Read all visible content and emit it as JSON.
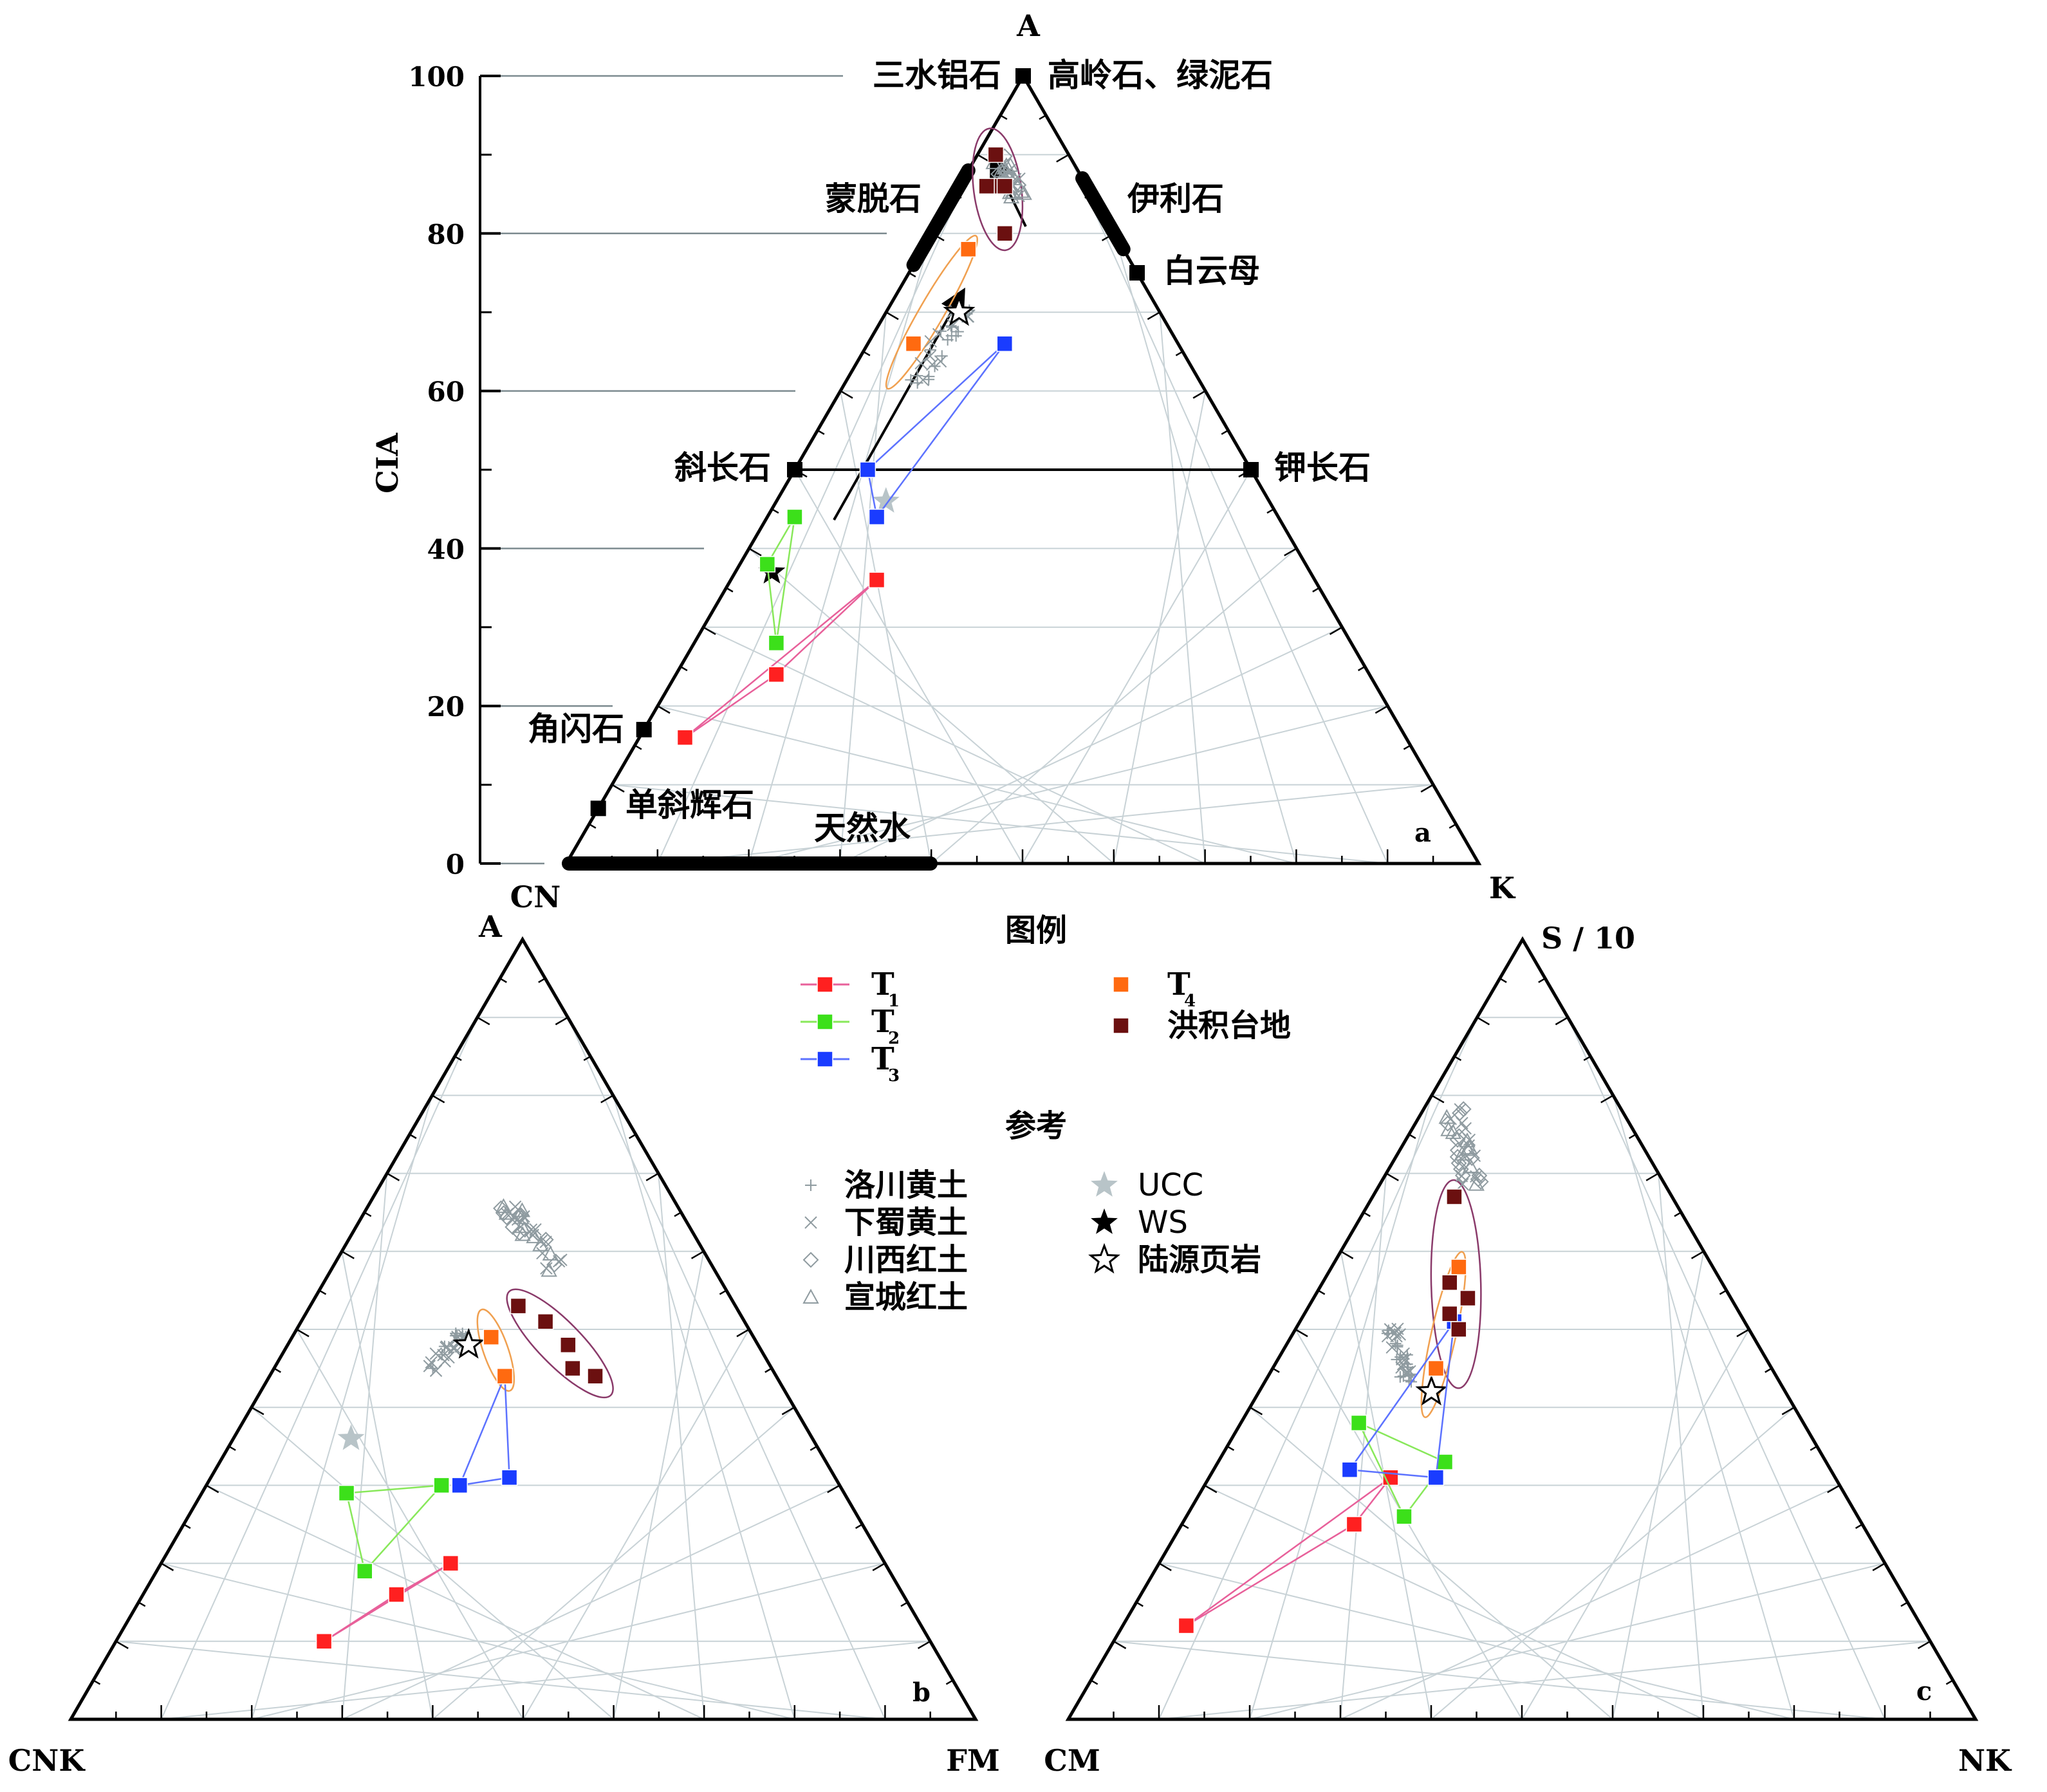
{
  "colors": {
    "T1": "#ff2020",
    "T2": "#3ce01a",
    "T3": "#1a3cff",
    "T4": "#ff6a10",
    "flood": "#6b1010",
    "ref": "#8f9ba0",
    "ellipse_flood": "#8a3a6a",
    "ellipse_t4": "#f0a050",
    "t1_line": "#e8609a",
    "t2_line": "#88e85a",
    "t3_line": "#5c72ff",
    "grid": "#c8d2d6",
    "guide": "#7d8b90"
  },
  "legend": {
    "title": "图例",
    "ref_title": "参考",
    "items": [
      {
        "key": "T1",
        "label": "T",
        "sub": "1",
        "marker": "square-line",
        "color": "#ff2020"
      },
      {
        "key": "T2",
        "label": "T",
        "sub": "2",
        "marker": "square-line",
        "color": "#3ce01a"
      },
      {
        "key": "T3",
        "label": "T",
        "sub": "3",
        "marker": "square-line",
        "color": "#1a3cff"
      },
      {
        "key": "T4",
        "label": "T",
        "sub": "4",
        "marker": "square",
        "color": "#ff6a10"
      },
      {
        "key": "flood",
        "label": "洪积台地",
        "sub": "",
        "marker": "square",
        "color": "#6b1010"
      }
    ],
    "ref_items": [
      {
        "label": "洛川黄土",
        "marker": "plus-icon"
      },
      {
        "label": "下蜀黄土",
        "marker": "cross-icon"
      },
      {
        "label": "川西红土",
        "marker": "diamond-icon"
      },
      {
        "label": "宣城红土",
        "marker": "triangle-icon"
      },
      {
        "label": "UCC",
        "marker": "grey-star-icon"
      },
      {
        "label": "WS",
        "marker": "black-star-icon"
      },
      {
        "label": "陆源页岩",
        "marker": "open-star-icon"
      }
    ]
  },
  "chart_data": [
    {
      "id": "a",
      "type": "scatter",
      "diagram": "ternary A-CN-K",
      "panel_label": "a",
      "vertices": {
        "top": "A",
        "left": "CN",
        "right": "K"
      },
      "ylabel": "CIA",
      "yticks": [
        0,
        20,
        40,
        60,
        80,
        100
      ],
      "minerals": [
        {
          "name": "三水铝石",
          "cia": 100
        },
        {
          "name": "高岭石、绿泥石",
          "cia": 100
        },
        {
          "name": "蒙脱石",
          "cia": 80
        },
        {
          "name": "伊利石",
          "cia": 85
        },
        {
          "name": "白云母",
          "cia": 75
        },
        {
          "name": "斜长石",
          "cia": 50
        },
        {
          "name": "钾长石",
          "cia": 50
        },
        {
          "name": "角闪石",
          "cia": 17
        },
        {
          "name": "单斜辉石",
          "cia": 7
        },
        {
          "name": "天然水",
          "cia": 0
        }
      ],
      "series": [
        {
          "key": "T1",
          "points": [
            [
              16,
              79,
              5
            ],
            [
              24,
              65,
              11
            ],
            [
              36,
              48,
              16
            ]
          ]
        },
        {
          "key": "T2",
          "points": [
            [
              28,
              63,
              9
            ],
            [
              38,
              59,
              3
            ],
            [
              44,
              53,
              3
            ]
          ]
        },
        {
          "key": "T3",
          "points": [
            [
              50,
              42,
              8
            ],
            [
              44,
              44,
              12
            ],
            [
              66,
              19,
              15
            ]
          ]
        },
        {
          "key": "T4",
          "points": [
            [
              66,
              29,
              5
            ],
            [
              78,
              17,
              5
            ]
          ]
        },
        {
          "key": "flood",
          "points": [
            [
              90,
              8,
              2
            ],
            [
              86,
              10,
              4
            ],
            [
              86,
              11,
              3
            ],
            [
              86,
              9,
              5
            ],
            [
              80,
              12,
              8
            ]
          ]
        }
      ],
      "reference": {
        "UCC": [
          46,
          42,
          12
        ],
        "WS": [
          37,
          59,
          4
        ],
        "shale": [
          70,
          22,
          8
        ]
      }
    },
    {
      "id": "b",
      "type": "scatter",
      "diagram": "ternary A-CNK-FM",
      "panel_label": "b",
      "vertices": {
        "top": "A",
        "left": "CNK",
        "right": "FM"
      },
      "series": [
        {
          "key": "T1",
          "points": [
            [
              10,
              67,
              23
            ],
            [
              16,
              56,
              28
            ],
            [
              20,
              48,
              32
            ]
          ]
        },
        {
          "key": "T2",
          "points": [
            [
              19,
              58,
              23
            ],
            [
              29,
              55,
              16
            ],
            [
              30,
              44,
              26
            ]
          ]
        },
        {
          "key": "T3",
          "points": [
            [
              30,
              42,
              28
            ],
            [
              31,
              36,
              33
            ],
            [
              44,
              30,
              26
            ]
          ]
        },
        {
          "key": "T4",
          "points": [
            [
              49,
              29,
              22
            ],
            [
              44,
              30,
              26
            ]
          ]
        },
        {
          "key": "flood",
          "points": [
            [
              53,
              24,
              23
            ],
            [
              51,
              22,
              27
            ],
            [
              48,
              21,
              31
            ],
            [
              45,
              22,
              33
            ],
            [
              44,
              20,
              36
            ]
          ]
        }
      ],
      "reference": {
        "UCC": [
          36,
          51,
          13
        ],
        "shale": [
          48,
          32,
          20
        ]
      }
    },
    {
      "id": "c",
      "type": "scatter",
      "diagram": "ternary S/10-CM-NK",
      "panel_label": "c",
      "vertices": {
        "top": "S / 10",
        "left": "CM",
        "right": "NK"
      },
      "series": [
        {
          "key": "T1",
          "points": [
            [
              12,
              81,
              7
            ],
            [
              25,
              56,
              19
            ],
            [
              31,
              49,
              20
            ]
          ]
        },
        {
          "key": "T2",
          "points": [
            [
              26,
              50,
              24
            ],
            [
              33,
              42,
              25
            ],
            [
              38,
              49,
              13
            ]
          ]
        },
        {
          "key": "T3",
          "points": [
            [
              32,
              53,
              15
            ],
            [
              31,
              44,
              25
            ],
            [
              51,
              32,
              17
            ]
          ]
        },
        {
          "key": "T4",
          "points": [
            [
              45,
              37,
              18
            ],
            [
              58,
              28,
              14
            ]
          ]
        },
        {
          "key": "flood",
          "points": [
            [
              67,
              24,
              9
            ],
            [
              56,
              30,
              14
            ],
            [
              54,
              29,
              17
            ],
            [
              52,
              32,
              16
            ],
            [
              50,
              32,
              18
            ]
          ]
        }
      ],
      "reference": {
        "shale": [
          42,
          39,
          19
        ]
      }
    }
  ]
}
